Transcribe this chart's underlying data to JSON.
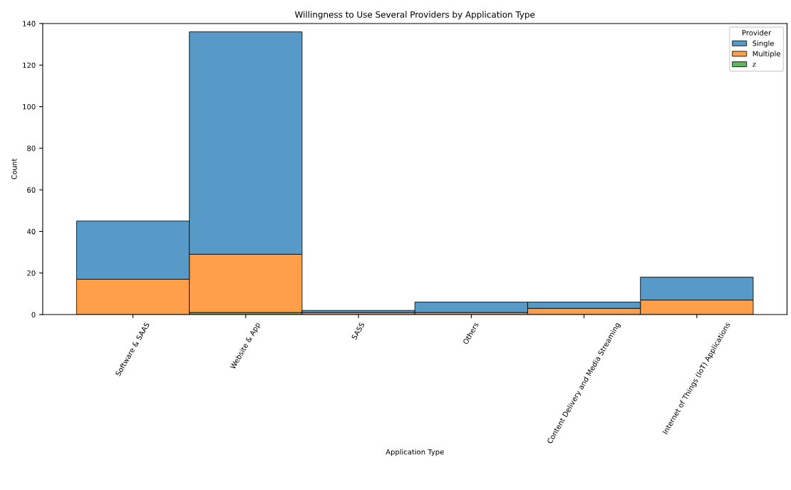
{
  "chart_data": {
    "type": "bar",
    "title": "Willingness to Use Several Providers by Application Type",
    "xlabel": "Application Type",
    "ylabel": "Count",
    "legend_title": "Provider",
    "categories": [
      "Software & SAAS",
      "Website & App",
      "SASS",
      "Others",
      "Content Delivery and Media Streaming",
      "Internet of Things (IoT) Applications"
    ],
    "stacked": true,
    "ylim": [
      0,
      140
    ],
    "yticks": [
      0,
      20,
      40,
      60,
      80,
      100,
      120,
      140
    ],
    "grid": false,
    "legend": "top right",
    "series": [
      {
        "name": "z",
        "color": "#60b760",
        "values": [
          0,
          1,
          0,
          0,
          0,
          0
        ]
      },
      {
        "name": "Multiple",
        "color": "#ff9f4a",
        "values": [
          17,
          28,
          1,
          1,
          3,
          7
        ]
      },
      {
        "name": "Single",
        "color": "#5799c7",
        "values": [
          28,
          107,
          1,
          5,
          3,
          11
        ]
      }
    ]
  }
}
